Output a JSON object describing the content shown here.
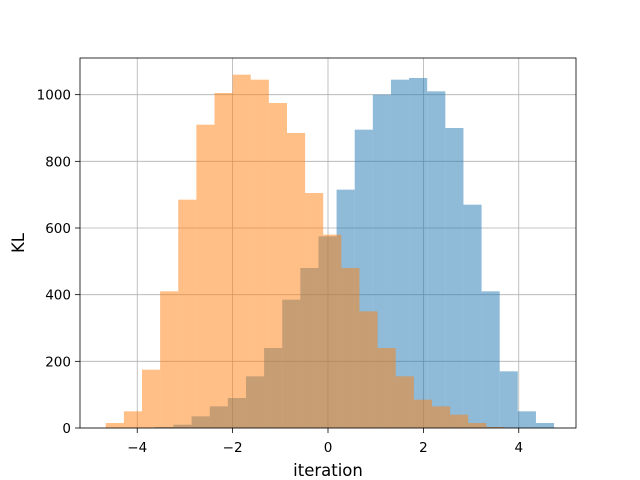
{
  "chart_data": {
    "type": "bar",
    "subtype": "overlapping-histogram",
    "title": "",
    "xlabel": "iteration",
    "ylabel": "KL",
    "xlim": [
      -5.2,
      5.2
    ],
    "ylim": [
      0,
      1110
    ],
    "grid": true,
    "legend": "none",
    "xticks": [
      -4,
      -2,
      0,
      2,
      4
    ],
    "xtick_labels": [
      "−4",
      "−2",
      "0",
      "2",
      "4"
    ],
    "yticks": [
      0,
      200,
      400,
      600,
      800,
      1000
    ],
    "ytick_labels": [
      "0",
      "200",
      "400",
      "600",
      "800",
      "1000"
    ],
    "series": [
      {
        "color": "#1f77b4",
        "opacity": 0.5,
        "bin_edges": [
          -3.62,
          -3.24,
          -2.86,
          -2.48,
          -2.1,
          -1.72,
          -1.34,
          -0.96,
          -0.58,
          -0.2,
          0.18,
          0.56,
          0.94,
          1.32,
          1.7,
          2.08,
          2.46,
          2.84,
          3.22,
          3.6,
          3.98,
          4.36,
          4.74
        ],
        "counts": [
          3,
          10,
          35,
          65,
          90,
          155,
          240,
          385,
          480,
          575,
          715,
          895,
          1000,
          1045,
          1050,
          1010,
          900,
          670,
          410,
          170,
          50,
          15
        ]
      },
      {
        "color": "#ff7f0e",
        "opacity": 0.5,
        "bin_edges": [
          -4.66,
          -4.28,
          -3.9,
          -3.52,
          -3.14,
          -2.76,
          -2.38,
          -2.0,
          -1.62,
          -1.24,
          -0.86,
          -0.48,
          -0.1,
          0.28,
          0.66,
          1.04,
          1.42,
          1.8,
          2.18,
          2.56,
          2.94,
          3.32,
          3.7
        ],
        "counts": [
          15,
          50,
          175,
          410,
          685,
          910,
          1005,
          1060,
          1045,
          975,
          885,
          705,
          580,
          480,
          350,
          240,
          155,
          85,
          65,
          40,
          15,
          3
        ]
      }
    ]
  }
}
